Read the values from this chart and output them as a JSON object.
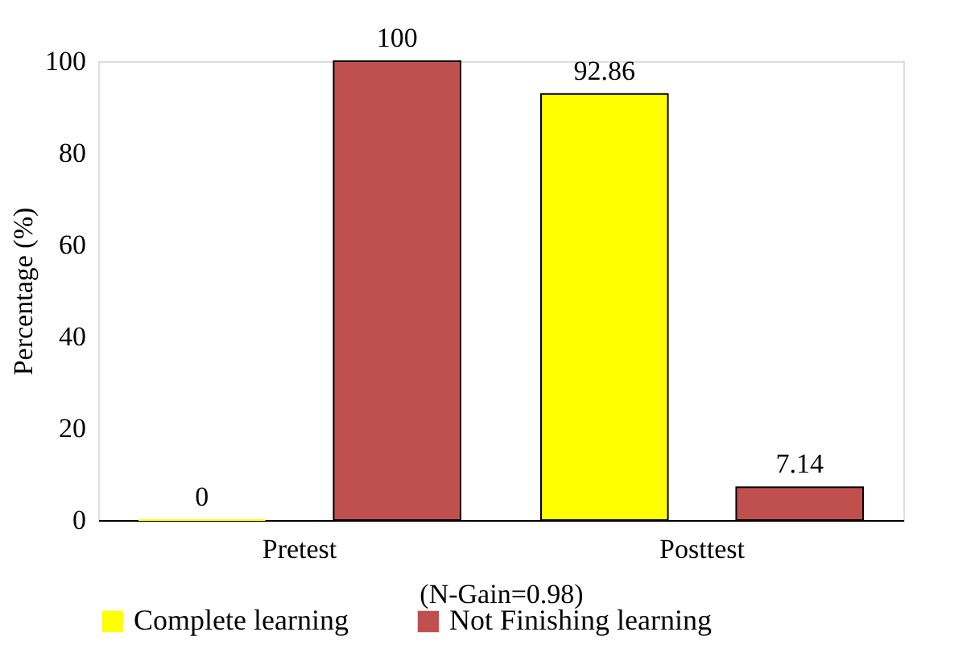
{
  "chart_data": {
    "type": "bar",
    "xlabel": "(N-Gain=0.98)",
    "ylabel": "Percentage (%)",
    "categories": [
      "Pretest",
      "Posttest"
    ],
    "series": [
      {
        "name": "Complete learning",
        "color": "#ffff00",
        "values": [
          0,
          92.86
        ]
      },
      {
        "name": "Not Finishing learning",
        "color": "#c0504d",
        "values": [
          100,
          7.14
        ]
      }
    ],
    "ylim": [
      0,
      100
    ],
    "yticks": [
      0,
      20,
      40,
      60,
      80,
      100
    ],
    "grid": false,
    "legend": "bottom",
    "data_labels": true
  }
}
